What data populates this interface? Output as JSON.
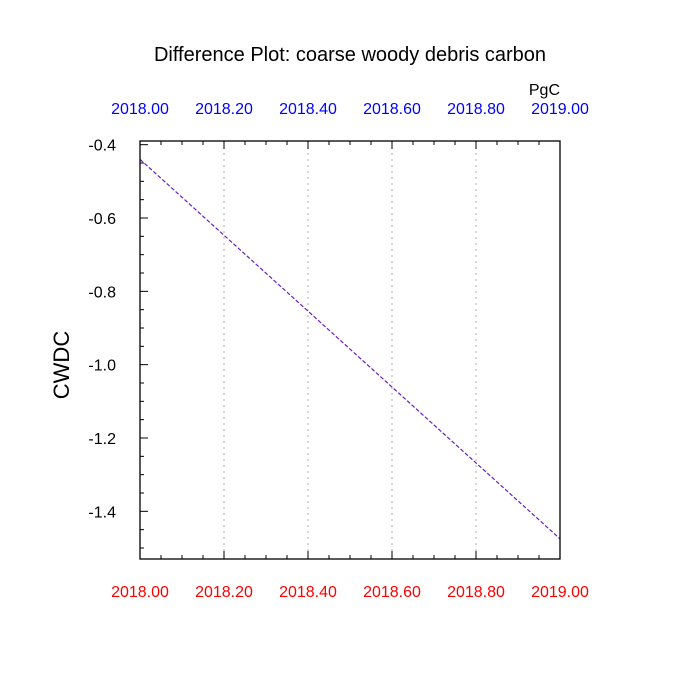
{
  "chart_data": {
    "type": "line",
    "title": "Difference Plot: coarse woody debris carbon",
    "units": "PgC",
    "ylabel": "CWDC",
    "xlim": [
      2018.0,
      2019.0
    ],
    "ylim": [
      -1.53,
      -0.39
    ],
    "x_ticks": [
      2018.0,
      2018.2,
      2018.4,
      2018.6,
      2018.8,
      2019.0
    ],
    "x_tick_labels": [
      "2018.00",
      "2018.20",
      "2018.40",
      "2018.60",
      "2018.80",
      "2019.00"
    ],
    "y_ticks": [
      -0.4,
      -0.6,
      -0.8,
      -1.0,
      -1.2,
      -1.4
    ],
    "y_tick_labels": [
      "-0.4",
      "-0.6",
      "-0.8",
      "-1.0",
      "-1.2",
      "-1.4"
    ],
    "grid": "vertical dotted",
    "series": [
      {
        "x": [
          2018.0,
          2019.0
        ],
        "values": [
          -0.44,
          -1.475
        ],
        "color": "#6a1fc0",
        "style": "dashed"
      }
    ],
    "colors": {
      "top_axis_labels": "#0000ff",
      "bottom_axis_labels": "#ff0000",
      "grid": "#bbbbbb"
    }
  }
}
